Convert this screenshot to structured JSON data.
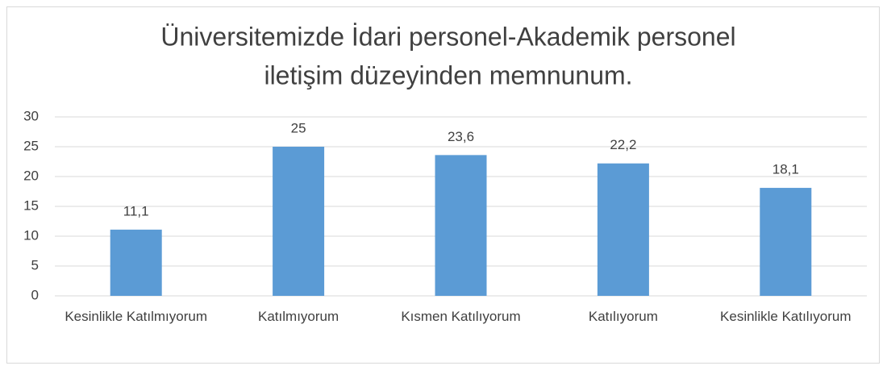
{
  "chart_data": {
    "type": "bar",
    "title": [
      "Üniversitemizde İdari personel-Akademik personel",
      "iletişim düzeyinden memnunum."
    ],
    "categories": [
      "Kesinlikle Katılmıyorum",
      "Katılmıyorum",
      "Kısmen Katılıyorum",
      "Katılıyorum",
      "Kesinlikle Katılıyorum"
    ],
    "values": [
      11.1,
      25,
      23.6,
      22.2,
      18.1
    ],
    "value_labels": [
      "11,1",
      "25",
      "23,6",
      "22,2",
      "18,1"
    ],
    "color": "#5b9bd5",
    "ylim": [
      0,
      30
    ],
    "yticks": [
      0,
      5,
      10,
      15,
      20,
      25,
      30
    ],
    "grid": true
  }
}
